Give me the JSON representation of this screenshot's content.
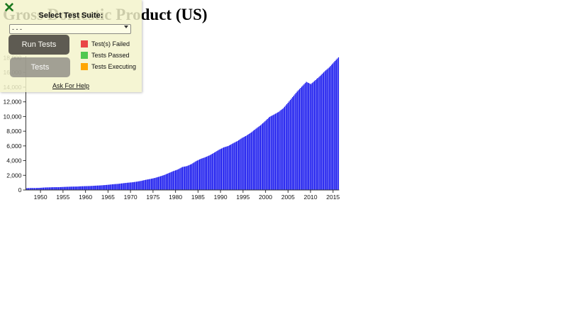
{
  "test_panel": {
    "close_icon": "✕",
    "select_label": "Select Test Suite:",
    "select_options": [
      "- - -"
    ],
    "select_value": "- - -",
    "run_button_label": "Run Tests",
    "tests_button_label": "Tests",
    "legend": [
      {
        "label": "Test(s) Failed",
        "color": "#e94646"
      },
      {
        "label": "Tests Passed",
        "color": "#50c850"
      },
      {
        "label": "Tests Executing",
        "color": "#ffa500"
      }
    ],
    "help_link_label": "Ask For Help",
    "panel_color": "#f3f3cb",
    "close_icon_color": "#1a781e"
  },
  "chart_data": {
    "type": "bar",
    "title": "Gross Domestic Product (US)",
    "xlabel": "",
    "ylabel": "",
    "ylim": [
      0,
      18000
    ],
    "grid": false,
    "legend_position": "none",
    "bar_color": "#1212ee",
    "axis_color": "#333333",
    "y_tick_values": [
      0,
      2000,
      4000,
      6000,
      8000,
      10000,
      12000,
      14000,
      16000,
      18000
    ],
    "y_tick_labels": [
      "0",
      "2,000",
      "4,000",
      "6,000",
      "8,000",
      "10,000",
      "12,000",
      "14,000",
      "16,000",
      "18,000"
    ],
    "x_tick_labels": [
      "1950",
      "1955",
      "1960",
      "1965",
      "1970",
      "1975",
      "1980",
      "1985",
      "1990",
      "1995",
      "2000",
      "2005",
      "2010",
      "2015"
    ],
    "years": [
      1947,
      1948,
      1949,
      1950,
      1951,
      1952,
      1953,
      1954,
      1955,
      1956,
      1957,
      1958,
      1959,
      1960,
      1961,
      1962,
      1963,
      1964,
      1965,
      1966,
      1967,
      1968,
      1969,
      1970,
      1971,
      1972,
      1973,
      1974,
      1975,
      1976,
      1977,
      1978,
      1979,
      1980,
      1981,
      1982,
      1983,
      1984,
      1985,
      1986,
      1987,
      1988,
      1989,
      1990,
      1991,
      1992,
      1993,
      1994,
      1995,
      1996,
      1997,
      1998,
      1999,
      2000,
      2001,
      2002,
      2003,
      2004,
      2005,
      2006,
      2007,
      2008,
      2009,
      2010,
      2011,
      2012,
      2013,
      2014,
      2015
    ],
    "values": [
      243,
      269,
      267,
      294,
      339,
      358,
      380,
      380,
      414,
      438,
      461,
      467,
      507,
      527,
      545,
      586,
      618,
      664,
      720,
      789,
      834,
      912,
      985,
      1039,
      1127,
      1238,
      1383,
      1500,
      1638,
      1825,
      2030,
      2294,
      2563,
      2790,
      3128,
      3255,
      3537,
      3933,
      4240,
      4463,
      4740,
      5104,
      5482,
      5800,
      5992,
      6342,
      6667,
      7085,
      7414,
      7838,
      8332,
      8794,
      9354,
      9952,
      10286,
      10642,
      11142,
      11868,
      12638,
      13399,
      14062,
      14719,
      14419,
      14964,
      15518,
      16155,
      16692,
      17393,
      18060
    ],
    "interpolation": "quarterly-bars"
  }
}
